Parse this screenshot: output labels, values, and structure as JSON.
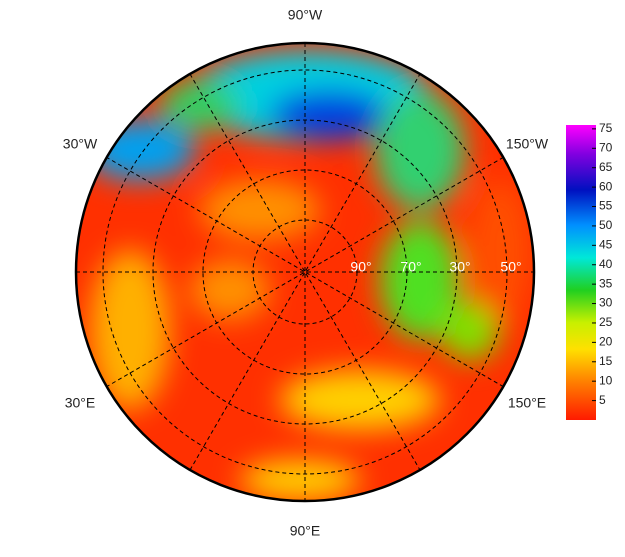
{
  "map": {
    "longitude_labels": [
      "90°W",
      "150°W",
      "30°W",
      "30°E",
      "150°E",
      "90°E"
    ],
    "latitude_labels": [
      "90°",
      "70°",
      "30°",
      "50°"
    ],
    "colorbar": {
      "range": [
        0,
        76
      ],
      "ticks": [
        5,
        10,
        15,
        20,
        25,
        30,
        35,
        40,
        45,
        50,
        55,
        60,
        65,
        70,
        75
      ]
    }
  }
}
